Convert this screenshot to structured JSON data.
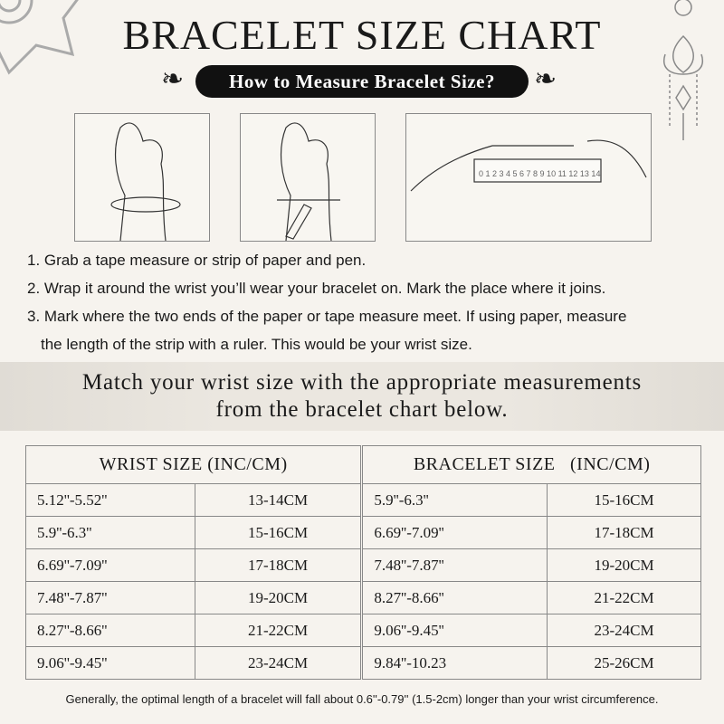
{
  "title": "BRACELET SIZE CHART",
  "subtitle": "How to Measure Bracelet Size?",
  "steps": [
    "1. Grab a tape measure or strip of paper and pen.",
    "2. Wrap it around the wrist you’ll wear your bracelet on. Mark the place where it joins.",
    "3. Mark where the two ends of the paper or tape measure meet. If using paper, measure",
    "the length of the strip with a ruler. This would be your wrist size."
  ],
  "ruler_numbers": "0 1 2 3 4 5 6 7 8 9 10 11 12 13 14",
  "band": [
    "Match your wrist size with the appropriate measurements",
    "from the bracelet chart below."
  ],
  "table": {
    "headers": [
      "WRIST SIZE (INC/CM)",
      "BRACELET SIZE   (INC/CM)"
    ],
    "rows": [
      [
        "5.12''-5.52''",
        "13-14CM",
        "5.9''-6.3''",
        "15-16CM"
      ],
      [
        "5.9''-6.3''",
        "15-16CM",
        "6.69''-7.09''",
        "17-18CM"
      ],
      [
        "6.69''-7.09''",
        "17-18CM",
        "7.48''-7.87''",
        "19-20CM"
      ],
      [
        "7.48''-7.87''",
        "19-20CM",
        "8.27''-8.66''",
        "21-22CM"
      ],
      [
        "8.27''-8.66''",
        "21-22CM",
        "9.06''-9.45''",
        "23-24CM"
      ],
      [
        "9.06''-9.45''",
        "23-24CM",
        "9.84''-10.23",
        "25-26CM"
      ]
    ]
  },
  "footer": "Generally, the optimal length of a bracelet will fall about 0.6''-0.79'' (1.5-2cm) longer than your wrist circumference."
}
